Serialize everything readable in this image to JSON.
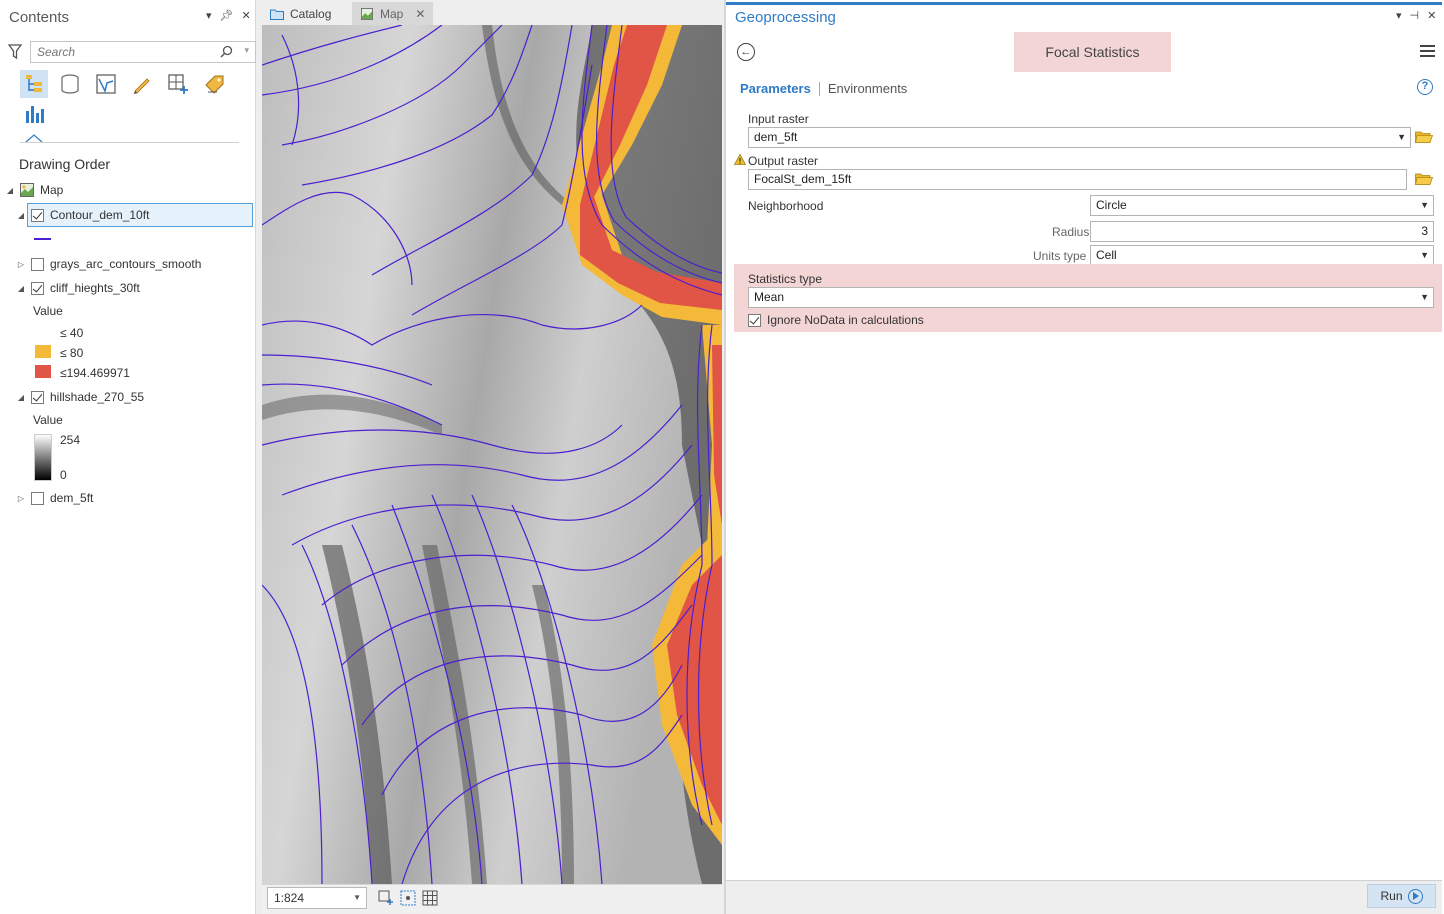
{
  "contents": {
    "title": "Contents",
    "search_placeholder": "Search",
    "section_title": "Drawing Order",
    "layers": [
      {
        "name": "Map",
        "checked": null
      },
      {
        "name": "Contour_dem_10ft",
        "checked": true
      },
      {
        "name": "grays_arc_contours_smooth",
        "checked": false
      },
      {
        "name": "cliff_hieghts_30ft",
        "checked": true
      },
      {
        "name": "hillshade_270_55",
        "checked": true
      },
      {
        "name": "dem_5ft",
        "checked": false
      }
    ],
    "cliff_legend": {
      "value_label": "Value",
      "classes": [
        {
          "label": "≤ 40",
          "color": "#ffffff"
        },
        {
          "label": "≤ 80",
          "color": "#f5b939"
        },
        {
          "label": "≤194.469971",
          "color": "#e05545"
        }
      ]
    },
    "hillshade_legend": {
      "value_label": "Value",
      "max": "254",
      "min": "0"
    },
    "icons": [
      "filter-icon",
      "search-icon",
      "list-by-drawing-order-icon",
      "list-by-source-icon",
      "list-by-selection-icon",
      "list-by-editing-icon",
      "list-by-snapping-icon",
      "list-by-labeling-icon",
      "list-by-charts-icon"
    ]
  },
  "tabs": [
    {
      "label": "Catalog"
    },
    {
      "label": "Map"
    }
  ],
  "map_status": {
    "scale": "1:824"
  },
  "geoprocessing": {
    "title": "Geoprocessing",
    "tool_title": "Focal Statistics",
    "tab_parameters": "Parameters",
    "tab_environments": "Environments",
    "params": {
      "input_raster_label": "Input raster",
      "input_raster_value": "dem_5ft",
      "output_raster_label": "Output raster",
      "output_raster_value": "FocalSt_dem_15ft",
      "neighborhood_label": "Neighborhood",
      "neighborhood_value": "Circle",
      "radius_label": "Radius",
      "radius_value": "3",
      "units_type_label": "Units type",
      "units_type_value": "Cell",
      "statistics_type_label": "Statistics type",
      "statistics_type_value": "Mean",
      "ignore_nodata_label": "Ignore NoData in calculations",
      "ignore_nodata_checked": true
    },
    "run_label": "Run"
  },
  "colors": {
    "accent_blue": "#2f7bc6",
    "highlight_pink": "#f3d5d6",
    "contour_purple": "#4b1fd0",
    "cliff_orange": "#f5b939",
    "cliff_red": "#e05545"
  }
}
